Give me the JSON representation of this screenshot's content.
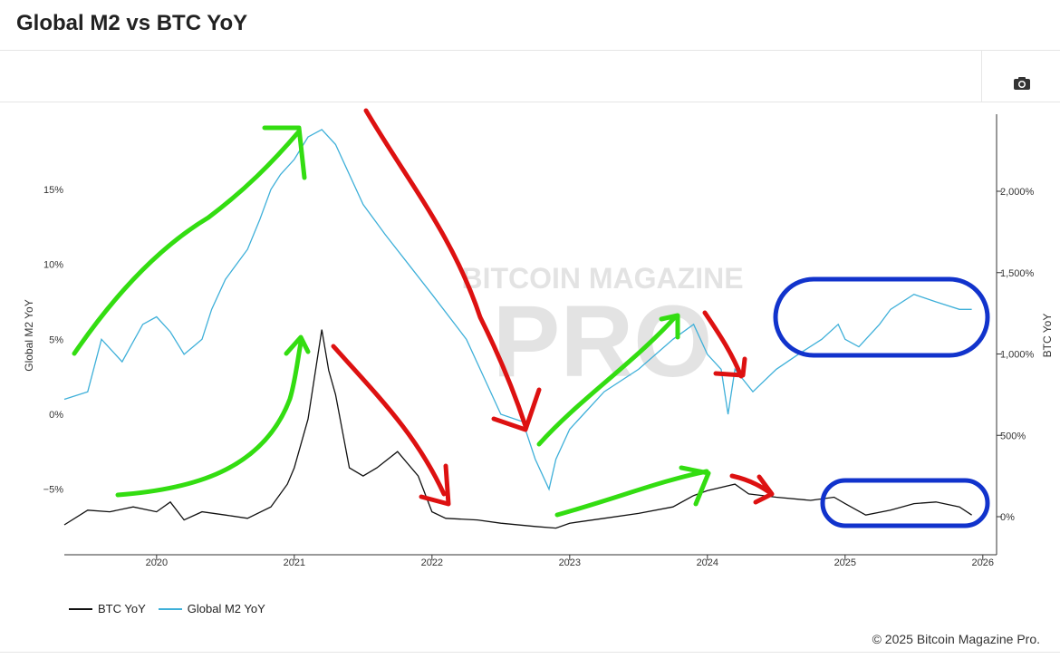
{
  "header": {
    "title": "Global M2 vs BTC YoY"
  },
  "toolbar": {
    "camera_icon": "camera-icon"
  },
  "footer": {
    "copyright": "© 2025 Bitcoin Magazine Pro."
  },
  "watermark": {
    "line1": "BITCOIN MAGAZINE",
    "line2": "PRO"
  },
  "colors": {
    "btc": "#111111",
    "m2": "#3fb0d9",
    "green": "#33dd11",
    "red": "#dd1111",
    "blue": "#1133cc"
  },
  "chart_data": {
    "type": "line",
    "x_ticks": [
      "2020",
      "2021",
      "2022",
      "2023",
      "2024",
      "2025",
      "2026"
    ],
    "left_axis": {
      "label": "Global M2 YoY",
      "ticks": [
        "15%",
        "10%",
        "5%",
        "0%",
        "−5%"
      ]
    },
    "right_axis": {
      "label": "BTC YoY",
      "ticks": [
        "2,000%",
        "1,500%",
        "1,000%",
        "500%",
        "0%"
      ]
    },
    "series": [
      {
        "name": "BTC YoY",
        "axis": "right",
        "points": [
          [
            2019.33,
            -50
          ],
          [
            2019.5,
            40
          ],
          [
            2019.66,
            30
          ],
          [
            2019.83,
            60
          ],
          [
            2020.0,
            30
          ],
          [
            2020.1,
            90
          ],
          [
            2020.2,
            -20
          ],
          [
            2020.33,
            30
          ],
          [
            2020.5,
            10
          ],
          [
            2020.66,
            -10
          ],
          [
            2020.83,
            60
          ],
          [
            2020.95,
            200
          ],
          [
            2021.0,
            300
          ],
          [
            2021.1,
            600
          ],
          [
            2021.2,
            1150
          ],
          [
            2021.25,
            900
          ],
          [
            2021.3,
            750
          ],
          [
            2021.4,
            300
          ],
          [
            2021.5,
            250
          ],
          [
            2021.6,
            300
          ],
          [
            2021.75,
            400
          ],
          [
            2021.8,
            350
          ],
          [
            2021.9,
            250
          ],
          [
            2022.0,
            30
          ],
          [
            2022.1,
            -10
          ],
          [
            2022.33,
            -20
          ],
          [
            2022.5,
            -40
          ],
          [
            2022.75,
            -60
          ],
          [
            2022.9,
            -70
          ],
          [
            2023.0,
            -40
          ],
          [
            2023.25,
            -10
          ],
          [
            2023.5,
            20
          ],
          [
            2023.75,
            60
          ],
          [
            2023.9,
            130
          ],
          [
            2024.0,
            160
          ],
          [
            2024.2,
            200
          ],
          [
            2024.3,
            140
          ],
          [
            2024.5,
            120
          ],
          [
            2024.75,
            100
          ],
          [
            2024.92,
            120
          ],
          [
            2025.0,
            80
          ],
          [
            2025.15,
            10
          ],
          [
            2025.33,
            40
          ],
          [
            2025.5,
            80
          ],
          [
            2025.66,
            90
          ],
          [
            2025.83,
            60
          ],
          [
            2025.92,
            10
          ]
        ]
      },
      {
        "name": "Global M2 YoY",
        "axis": "left",
        "points": [
          [
            2019.33,
            1
          ],
          [
            2019.5,
            1.5
          ],
          [
            2019.6,
            5
          ],
          [
            2019.75,
            3.5
          ],
          [
            2019.9,
            6
          ],
          [
            2020.0,
            6.5
          ],
          [
            2020.1,
            5.5
          ],
          [
            2020.2,
            4
          ],
          [
            2020.33,
            5
          ],
          [
            2020.4,
            7
          ],
          [
            2020.5,
            9
          ],
          [
            2020.66,
            11
          ],
          [
            2020.75,
            13
          ],
          [
            2020.83,
            15
          ],
          [
            2020.9,
            16
          ],
          [
            2021.0,
            17
          ],
          [
            2021.1,
            18.5
          ],
          [
            2021.2,
            19
          ],
          [
            2021.3,
            18
          ],
          [
            2021.4,
            16
          ],
          [
            2021.5,
            14
          ],
          [
            2021.66,
            12
          ],
          [
            2021.83,
            10
          ],
          [
            2022.0,
            8
          ],
          [
            2022.25,
            5
          ],
          [
            2022.4,
            2
          ],
          [
            2022.5,
            0
          ],
          [
            2022.66,
            -0.5
          ],
          [
            2022.75,
            -3
          ],
          [
            2022.85,
            -5
          ],
          [
            2022.9,
            -3
          ],
          [
            2023.0,
            -1
          ],
          [
            2023.1,
            0
          ],
          [
            2023.25,
            1.5
          ],
          [
            2023.5,
            3
          ],
          [
            2023.75,
            5
          ],
          [
            2023.9,
            6
          ],
          [
            2024.0,
            4
          ],
          [
            2024.1,
            3
          ],
          [
            2024.15,
            0
          ],
          [
            2024.2,
            3
          ],
          [
            2024.33,
            1.5
          ],
          [
            2024.5,
            3
          ],
          [
            2024.66,
            4
          ],
          [
            2024.83,
            5
          ],
          [
            2024.95,
            6
          ],
          [
            2025.0,
            5
          ],
          [
            2025.1,
            4.5
          ],
          [
            2025.25,
            6
          ],
          [
            2025.33,
            7
          ],
          [
            2025.5,
            8
          ],
          [
            2025.66,
            7.5
          ],
          [
            2025.83,
            7
          ],
          [
            2025.92,
            7
          ]
        ]
      }
    ]
  }
}
